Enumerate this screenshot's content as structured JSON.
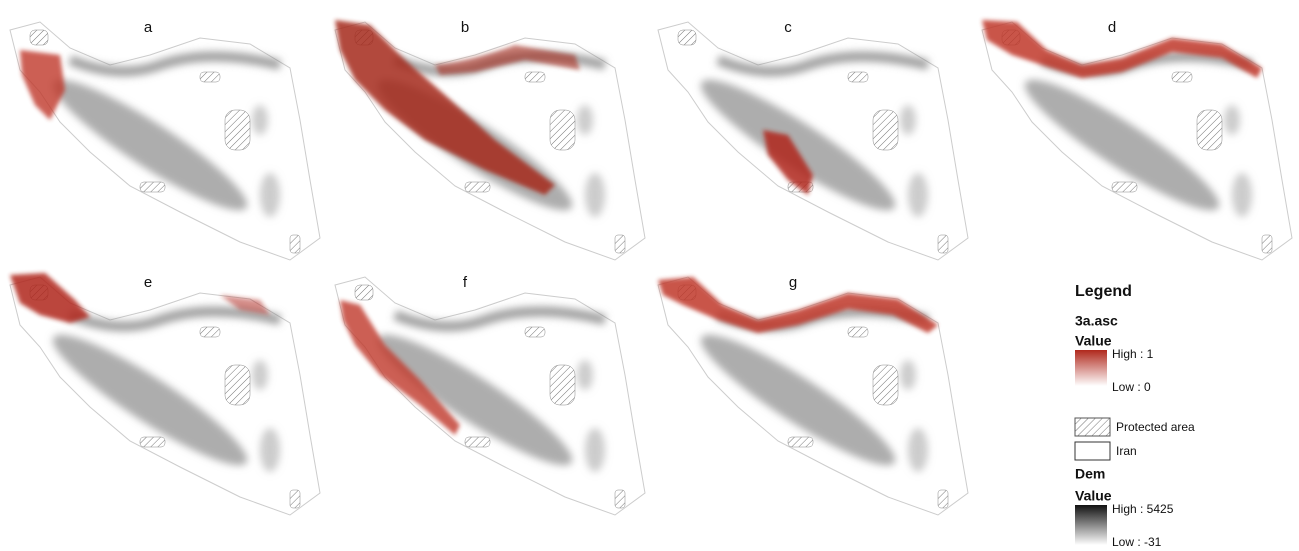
{
  "panels": [
    {
      "label": "a"
    },
    {
      "label": "b"
    },
    {
      "label": "c"
    },
    {
      "label": "d"
    },
    {
      "label": "e"
    },
    {
      "label": "f"
    },
    {
      "label": "g"
    }
  ],
  "legend": {
    "title": "Legend",
    "layer1": {
      "name": "3a.asc",
      "value_heading": "Value",
      "high": "High : 1",
      "low": "Low : 0"
    },
    "protected_area": "Protected area",
    "iran": "Iran",
    "layer2": {
      "name": "Dem",
      "value_heading": "Value",
      "high": "High : 5425",
      "low": "Low : -31"
    }
  }
}
